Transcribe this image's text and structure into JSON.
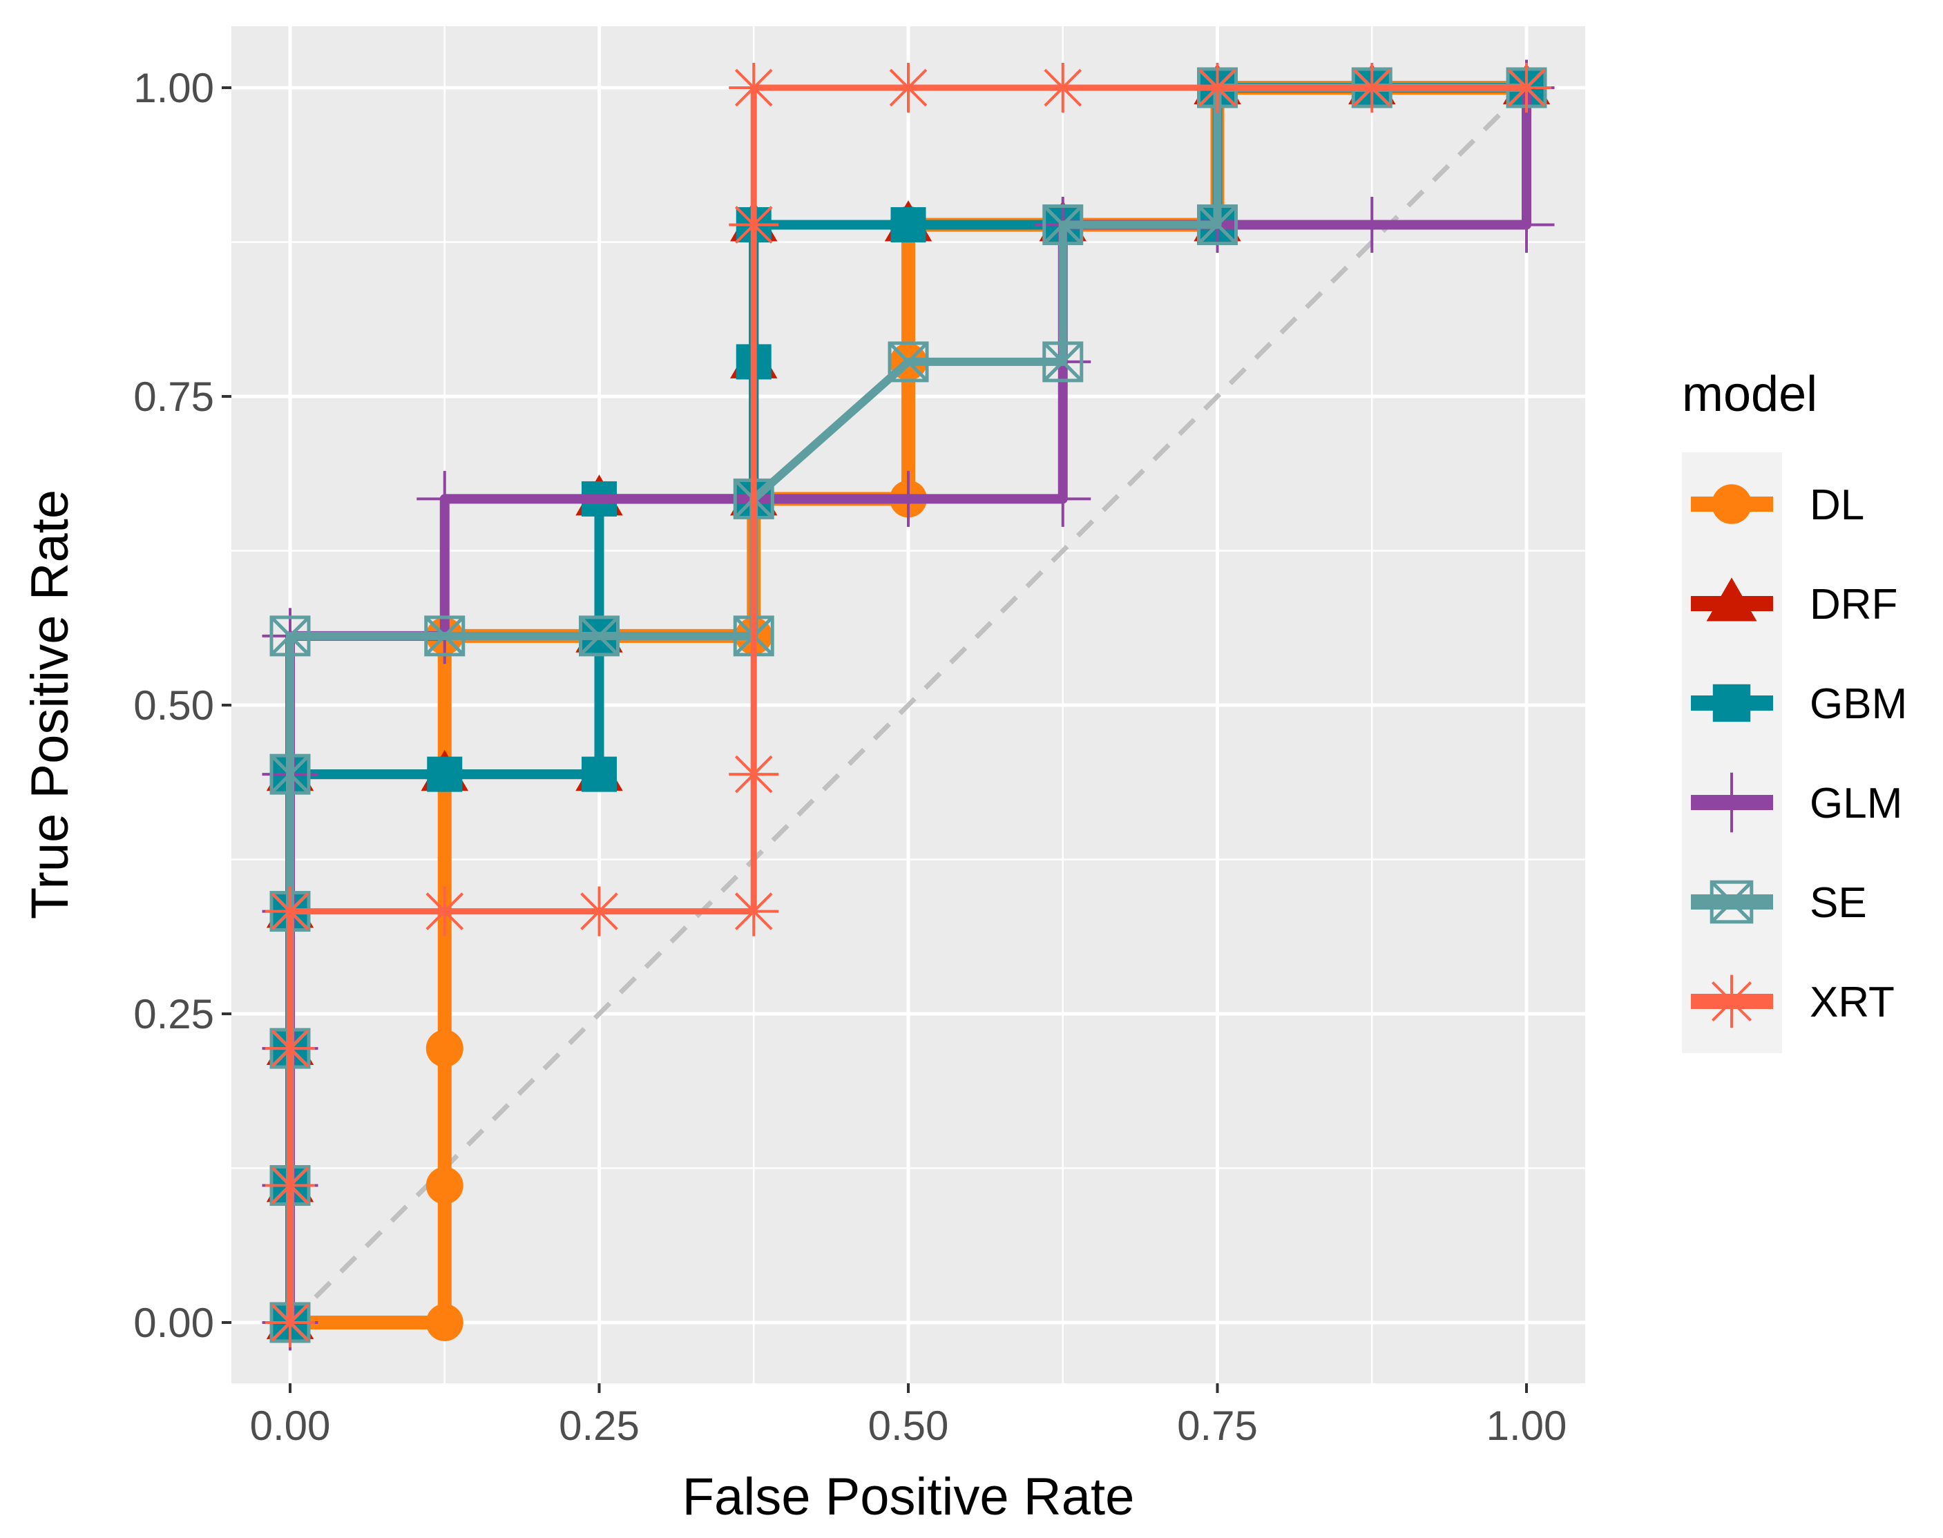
{
  "chart_data": {
    "type": "line",
    "xlabel": "False Positive Rate",
    "ylabel": "True Positive Rate",
    "xlim": [
      -0.1,
      1.1
    ],
    "ylim": [
      -0.1,
      1.05
    ],
    "xticks": [
      0,
      0.25,
      0.5,
      0.75,
      1
    ],
    "yticks": [
      0,
      0.25,
      0.5,
      0.75,
      1
    ],
    "xtick_labels": [
      "0.00",
      "0.25",
      "0.50",
      "0.75",
      "1.00"
    ],
    "ytick_labels": [
      "0.00",
      "0.25",
      "0.50",
      "0.75",
      "1.00"
    ],
    "grid": true,
    "panel_background": "#ebebeb",
    "reference_line": {
      "x": [
        0,
        1
      ],
      "y": [
        0,
        1
      ],
      "style": "dashed",
      "color": "#c0c0c0"
    },
    "legend": {
      "title": "model",
      "position": "right"
    },
    "series": [
      {
        "name": "DL",
        "color": "#ff7f0e",
        "marker": "circle",
        "x": [
          0,
          0.125,
          0.125,
          0.125,
          0.125,
          0.375,
          0.375,
          0.5,
          0.5,
          0.5,
          0.625,
          0.75,
          0.75,
          0.875,
          1
        ],
        "y": [
          0,
          0,
          0.111,
          0.222,
          0.556,
          0.556,
          0.667,
          0.667,
          0.778,
          0.889,
          0.889,
          0.889,
          1,
          1,
          1
        ]
      },
      {
        "name": "DRF",
        "color": "#cc1a00",
        "marker": "triangle",
        "x": [
          0,
          0,
          0,
          0,
          0,
          0.125,
          0.25,
          0.25,
          0.25,
          0.375,
          0.375,
          0.375,
          0.5,
          0.625,
          0.75,
          0.75,
          0.875,
          1
        ],
        "y": [
          0,
          0.111,
          0.222,
          0.333,
          0.444,
          0.444,
          0.444,
          0.556,
          0.667,
          0.667,
          0.778,
          0.889,
          0.889,
          0.889,
          0.889,
          1,
          1,
          1
        ]
      },
      {
        "name": "GBM",
        "color": "#008b9a",
        "marker": "square",
        "x": [
          0,
          0,
          0,
          0,
          0,
          0.125,
          0.25,
          0.25,
          0.25,
          0.375,
          0.375,
          0.375,
          0.5,
          0.625,
          0.75,
          0.75,
          0.875,
          1
        ],
        "y": [
          0,
          0.111,
          0.222,
          0.333,
          0.444,
          0.444,
          0.444,
          0.556,
          0.667,
          0.667,
          0.778,
          0.889,
          0.889,
          0.889,
          0.889,
          1,
          1,
          1
        ]
      },
      {
        "name": "GLM",
        "color": "#8e44a0",
        "marker": "plus",
        "x": [
          0,
          0,
          0,
          0,
          0,
          0,
          0.125,
          0.125,
          0.375,
          0.5,
          0.625,
          0.625,
          0.625,
          0.75,
          0.875,
          1,
          1
        ],
        "y": [
          0,
          0.111,
          0.222,
          0.333,
          0.444,
          0.556,
          0.556,
          0.667,
          0.667,
          0.667,
          0.667,
          0.778,
          0.889,
          0.889,
          0.889,
          0.889,
          1
        ]
      },
      {
        "name": "SE",
        "color": "#5f9ea0",
        "marker": "square-x",
        "x": [
          0,
          0,
          0,
          0,
          0,
          0,
          0.125,
          0.25,
          0.375,
          0.375,
          0.5,
          0.625,
          0.625,
          0.75,
          0.75,
          0.875,
          1
        ],
        "y": [
          0,
          0.111,
          0.222,
          0.333,
          0.444,
          0.556,
          0.556,
          0.556,
          0.556,
          0.667,
          0.778,
          0.778,
          0.889,
          0.889,
          1,
          1,
          1
        ]
      },
      {
        "name": "XRT",
        "color": "#ff6347",
        "marker": "star",
        "x": [
          0,
          0,
          0,
          0,
          0.125,
          0.25,
          0.375,
          0.375,
          0.375,
          0.375,
          0.5,
          0.625,
          0.75,
          0.875,
          1
        ],
        "y": [
          0,
          0.111,
          0.222,
          0.333,
          0.333,
          0.333,
          0.333,
          0.444,
          0.889,
          1,
          1,
          1,
          1,
          1,
          1
        ]
      }
    ]
  }
}
